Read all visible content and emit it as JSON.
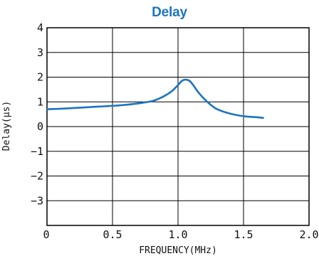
{
  "chart_data": {
    "type": "line",
    "title": "Delay",
    "xlabel": "FREQUENCY(MHz)",
    "ylabel": "Delay(μs)",
    "xlim": [
      0,
      2.0
    ],
    "ylim": [
      -4,
      4
    ],
    "grid": true,
    "xticks": [
      0,
      0.5,
      1.0,
      1.5,
      2.0
    ],
    "xtick_labels": [
      "0",
      "0.5",
      "1.0",
      "1.5",
      "2.0"
    ],
    "yticks": [
      4,
      3,
      2,
      1,
      0,
      -1,
      -2,
      -3
    ],
    "ytick_labels": [
      "4",
      "3",
      "2",
      "1",
      "0",
      "−1",
      "−2",
      "−3"
    ],
    "line_color": "#1b74bf",
    "series": [
      {
        "x": [
          0.0,
          0.1,
          0.2,
          0.3,
          0.4,
          0.5,
          0.6,
          0.7,
          0.8,
          0.85,
          0.9,
          0.95,
          1.0,
          1.03,
          1.06,
          1.09,
          1.12,
          1.15,
          1.2,
          1.25,
          1.3,
          1.4,
          1.5,
          1.6,
          1.65
        ],
        "y": [
          0.7,
          0.72,
          0.75,
          0.78,
          0.81,
          0.84,
          0.88,
          0.94,
          1.03,
          1.12,
          1.25,
          1.42,
          1.68,
          1.85,
          1.9,
          1.84,
          1.65,
          1.42,
          1.12,
          0.88,
          0.7,
          0.52,
          0.42,
          0.38,
          0.35
        ]
      }
    ]
  }
}
